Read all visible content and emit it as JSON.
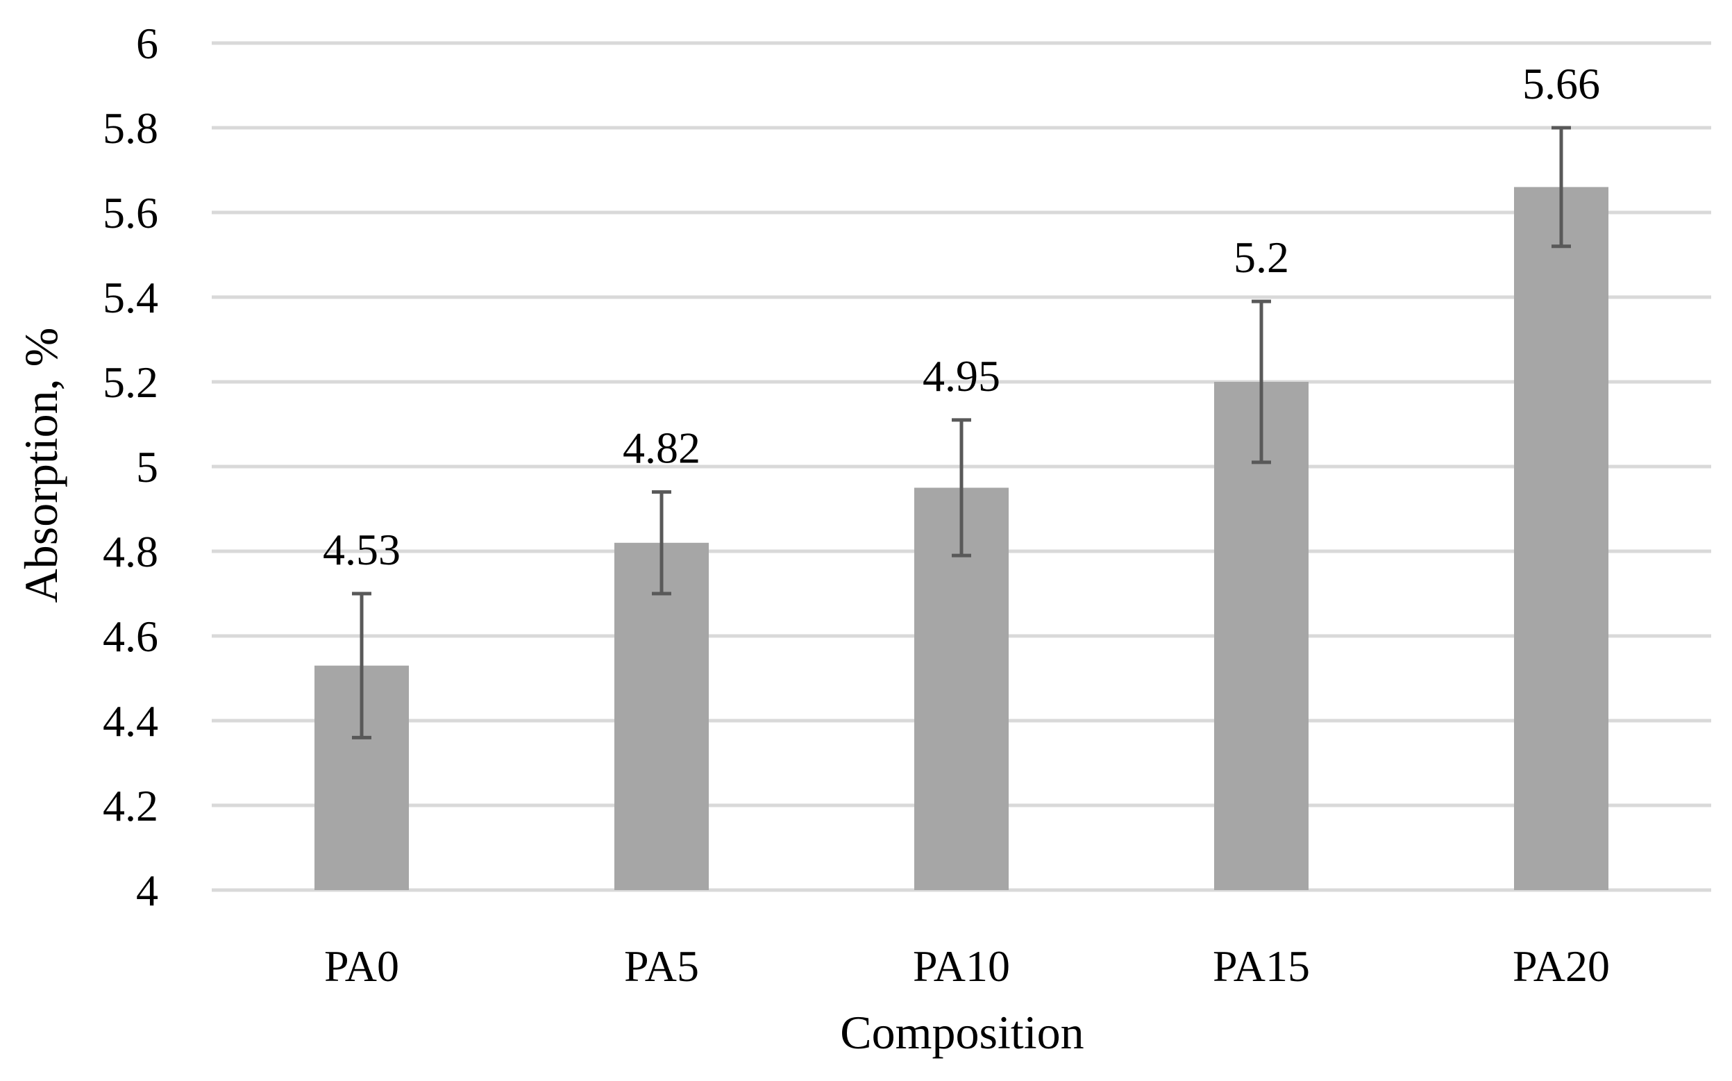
{
  "chart_data": {
    "type": "bar",
    "title": "",
    "xlabel": "Composition",
    "ylabel": "Absorption, %",
    "categories": [
      "PA0",
      "PA5",
      "PA10",
      "PA15",
      "PA20"
    ],
    "values": [
      4.53,
      4.82,
      4.95,
      5.2,
      5.66
    ],
    "error_low": [
      4.36,
      4.7,
      4.79,
      5.01,
      5.52
    ],
    "error_high": [
      4.7,
      4.94,
      5.11,
      5.39,
      5.8
    ],
    "data_labels": [
      "4.53",
      "4.82",
      "4.95",
      "5.2",
      "5.66"
    ],
    "ylim": [
      4,
      6
    ],
    "yticks": [
      "4",
      "4.2",
      "4.4",
      "4.6",
      "4.8",
      "5",
      "5.2",
      "5.4",
      "5.6",
      "5.8",
      "6"
    ],
    "grid": true,
    "legend": "none",
    "colors": {
      "bar": "#a6a6a6",
      "error_bar": "#595959",
      "grid": "#d9d9d9"
    }
  }
}
